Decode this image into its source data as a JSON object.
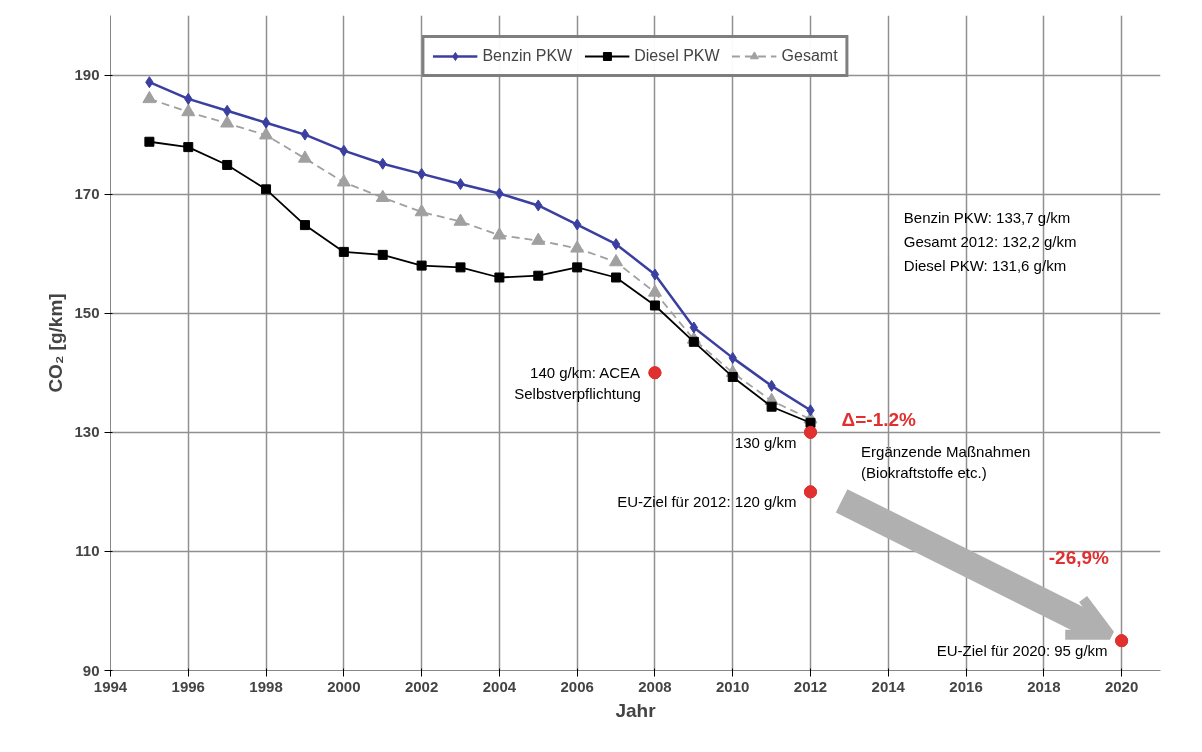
{
  "chart_data": {
    "type": "line",
    "xlabel": "Jahr",
    "ylabel": "CO₂ [g/km]",
    "x": [
      1995,
      1996,
      1997,
      1998,
      1999,
      2000,
      2001,
      2002,
      2003,
      2004,
      2005,
      2006,
      2007,
      2008,
      2009,
      2010,
      2011,
      2012
    ],
    "series": [
      {
        "name": "Benzin PKW",
        "color": "#3b3fa0",
        "marker": "diamond",
        "line_style": "solid",
        "values": [
          188.8,
          186,
          184,
          182,
          180,
          177.3,
          175.1,
          173.4,
          171.7,
          170.1,
          168.1,
          164.9,
          161.6,
          156.5,
          147.6,
          142.5,
          137.8,
          133.7
        ]
      },
      {
        "name": "Diesel PKW",
        "color": "#000000",
        "marker": "square",
        "line_style": "solid",
        "values": [
          178.8,
          177.9,
          174.9,
          170.8,
          164.8,
          160.3,
          159.8,
          158,
          157.7,
          156,
          156.3,
          157.7,
          156,
          151.3,
          145.2,
          139.3,
          134.3,
          131.6
        ]
      },
      {
        "name": "Gesamt",
        "color": "#a0a0a0",
        "marker": "triangle",
        "line_style": "dashed",
        "values": [
          186,
          183.8,
          181.9,
          179.9,
          176,
          172,
          169.4,
          167,
          165.4,
          163.1,
          162.2,
          160.9,
          158.6,
          153.5,
          145.6,
          140,
          135.3,
          132.2
        ]
      },
      {
        "type": "scatter",
        "color": "#e03030",
        "marker": "circle",
        "x": [
          2008,
          2012,
          2012,
          2020
        ],
        "values": [
          140,
          130,
          120,
          95
        ]
      }
    ],
    "xlim": [
      1994,
      2021
    ],
    "xticks": [
      1994,
      1996,
      1998,
      2000,
      2002,
      2004,
      2006,
      2008,
      2010,
      2012,
      2014,
      2016,
      2018,
      2020
    ],
    "ylim": [
      90,
      200
    ],
    "yticks": [
      90,
      110,
      130,
      150,
      170,
      190
    ],
    "grid": true,
    "legend": "top",
    "annotations": [
      "Benzin PKW:   133,7 g/km",
      "Gesamt 2012: 132,2 g/km",
      "Diesel PKW:   131,6 g/km",
      "Δ=-1.2%",
      "Ergänzende Maßnahmen\n(Biokraftstoffe etc.)",
      "-26,9%",
      {
        "text": "140 g/km: ACEA\nSelbstverpflichtung",
        "x": 2008,
        "y": 140
      },
      {
        "text": "130 g/km",
        "x": 2012,
        "y": 130
      },
      {
        "text": "EU-Ziel für 2012: 120 g/km",
        "x": 2012,
        "y": 120
      },
      {
        "text": "EU-Ziel für 2020: 95 g/km",
        "x": 2020,
        "y": 95
      }
    ]
  }
}
